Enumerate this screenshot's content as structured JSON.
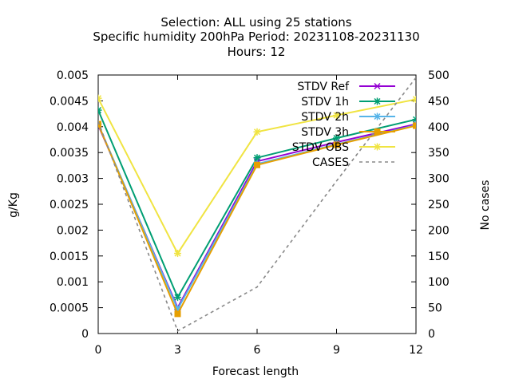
{
  "chart_data": {
    "type": "line",
    "title_lines": [
      "Selection: ALL using    25 stations",
      "Specific humidity 200hPa   Period: 20231108-20231130",
      "Hours:  12"
    ],
    "xlabel": "Forecast length",
    "ylabel": "g/Kg",
    "y2label": "No cases",
    "x": [
      0,
      3,
      6,
      9,
      12
    ],
    "x_ticks": [
      "0",
      "3",
      "6",
      "9",
      "12"
    ],
    "xlim": [
      0,
      12
    ],
    "ylim": [
      0,
      0.005
    ],
    "y_ticks": [
      "0",
      "0.0005",
      "0.001",
      "0.0015",
      "0.002",
      "0.0025",
      "0.003",
      "0.0035",
      "0.004",
      "0.0045",
      "0.005"
    ],
    "y2lim": [
      0,
      500
    ],
    "y2_ticks": [
      "0",
      "50",
      "100",
      "150",
      "200",
      "250",
      "300",
      "350",
      "400",
      "450",
      "500"
    ],
    "grid": false,
    "legend_position": "top-right",
    "series": [
      {
        "name": "STDV Ref",
        "axis": "y",
        "color": "#9400d3",
        "marker": "x",
        "dash": false,
        "values": [
          0.00403,
          0.0005,
          0.00333,
          0.0037,
          0.00405
        ]
      },
      {
        "name": "STDV 1h",
        "axis": "y",
        "color": "#009e73",
        "marker": "star",
        "dash": false,
        "values": [
          0.00432,
          0.0007,
          0.0034,
          0.00378,
          0.00414
        ]
      },
      {
        "name": "STDV 2h",
        "axis": "y",
        "color": "#56b4e9",
        "marker": "star",
        "dash": false,
        "values": [
          0.00405,
          0.00047,
          0.00328,
          0.00366,
          0.00403
        ]
      },
      {
        "name": "STDV 3h",
        "axis": "y",
        "color": "#e69f00",
        "marker": "box",
        "dash": false,
        "values": [
          0.00405,
          0.00038,
          0.00326,
          0.00365,
          0.00402
        ]
      },
      {
        "name": "STDV OBS",
        "axis": "y",
        "color": "#f0e442",
        "marker": "star",
        "dash": false,
        "values": [
          0.00455,
          0.00155,
          0.0039,
          0.00422,
          0.00453
        ]
      },
      {
        "name": "CASES",
        "axis": "y2",
        "color": "#888888",
        "marker": "none",
        "dash": true,
        "values": [
          410,
          5,
          90,
          295,
          495
        ]
      }
    ]
  }
}
